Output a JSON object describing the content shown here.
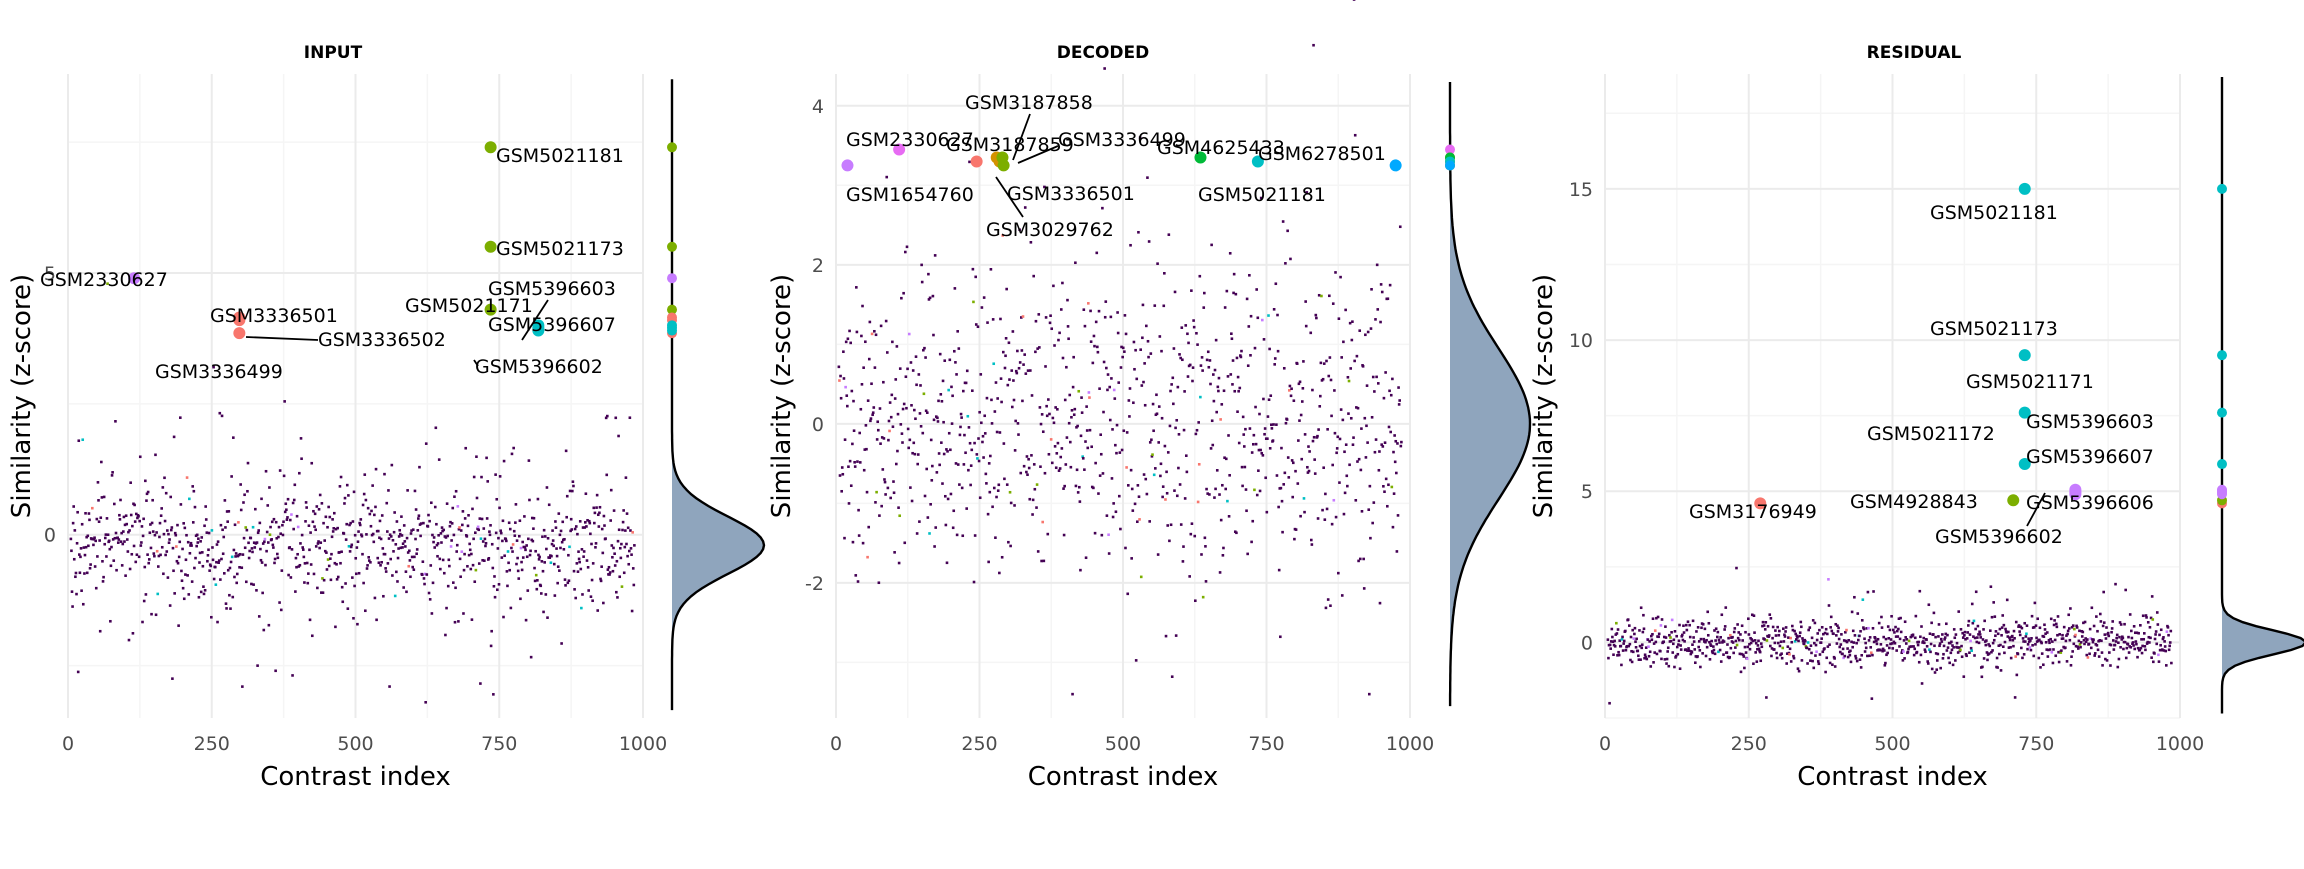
{
  "colors": {
    "background_dots": "#440154",
    "density_fill": "#8fa5bd",
    "grid_major": "#ebebeb",
    "grid_minor": "#f5f5f5",
    "red": "#f8766d",
    "olive": "#7cae00",
    "teal": "#00bfc4",
    "violet": "#c77cff",
    "pink": "#e76bf3",
    "orange": "#d39200",
    "green": "#00ba38",
    "blue": "#00a9ff"
  },
  "chart_data": [
    {
      "type": "scatter",
      "title": "INPUT",
      "xlabel": "Contrast index",
      "ylabel": "Similarity (z-score)",
      "xlim": [
        0,
        1000
      ],
      "ylim": [
        -3.5,
        8.8
      ],
      "x_ticks": [
        0,
        250,
        500,
        750,
        1000
      ],
      "y_ticks": [
        0,
        5
      ],
      "grid": true,
      "background": {
        "n": 1000,
        "mean": -0.2,
        "sd": 0.55,
        "outlier_sd": 1.2,
        "outlier_rate": 0.2
      },
      "highlighted_points": [
        {
          "x": 735,
          "y": 7.4,
          "label": "GSM5021181",
          "color": "olive"
        },
        {
          "x": 735,
          "y": 5.5,
          "label": "GSM5021173",
          "color": "olive"
        },
        {
          "x": 735,
          "y": 4.3,
          "label": "GSM5021171",
          "color": "olive"
        },
        {
          "x": 115,
          "y": 4.9,
          "label": "GSM2330627",
          "color": "violet"
        },
        {
          "x": 298,
          "y": 4.1,
          "label": "GSM3336501",
          "color": "red"
        },
        {
          "x": 298,
          "y": 4.15,
          "label": "GSM3336502",
          "color": "red"
        },
        {
          "x": 298,
          "y": 3.85,
          "label": "GSM3336499",
          "color": "red"
        },
        {
          "x": 818,
          "y": 3.95,
          "label": "GSM5396603",
          "color": "teal"
        },
        {
          "x": 818,
          "y": 4.0,
          "label": "GSM5396607",
          "color": "teal"
        },
        {
          "x": 818,
          "y": 3.9,
          "label": "GSM5396602",
          "color": "teal"
        }
      ],
      "density": {
        "mode": -0.2,
        "sd": 0.55
      }
    },
    {
      "type": "scatter",
      "title": "DECODED",
      "xlabel": "Contrast index",
      "ylabel": "Similarity (z-score)",
      "xlim": [
        0,
        1000
      ],
      "ylim": [
        -3.7,
        4.4
      ],
      "x_ticks": [
        0,
        250,
        500,
        750,
        1000
      ],
      "y_ticks": [
        -2,
        0,
        2,
        4
      ],
      "grid": true,
      "background": {
        "n": 1000,
        "mean": 0.0,
        "sd": 0.95,
        "outlier_sd": 1.1,
        "outlier_rate": 0.05
      },
      "highlighted_points": [
        {
          "x": 20,
          "y": 3.25,
          "label": "GSM1654760",
          "color": "violet"
        },
        {
          "x": 110,
          "y": 3.45,
          "label": "GSM2330627",
          "color": "pink"
        },
        {
          "x": 245,
          "y": 3.3,
          "label": "GSM3029762",
          "color": "red"
        },
        {
          "x": 280,
          "y": 3.35,
          "label": "GSM3187858",
          "color": "orange"
        },
        {
          "x": 285,
          "y": 3.3,
          "label": "GSM3187859",
          "color": "orange"
        },
        {
          "x": 290,
          "y": 3.35,
          "label": "GSM3336499",
          "color": "olive"
        },
        {
          "x": 292,
          "y": 3.25,
          "label": "GSM3336501",
          "color": "olive"
        },
        {
          "x": 635,
          "y": 3.35,
          "label": "GSM4625433",
          "color": "green"
        },
        {
          "x": 735,
          "y": 3.3,
          "label": "GSM5021181",
          "color": "teal"
        },
        {
          "x": 975,
          "y": 3.25,
          "label": "GSM6278501",
          "color": "blue"
        }
      ],
      "density": {
        "mode": 0.0,
        "sd": 0.95
      }
    },
    {
      "type": "scatter",
      "title": "RESIDUAL",
      "xlabel": "Contrast index",
      "ylabel": "Similarity (z-score)",
      "xlim": [
        0,
        1000
      ],
      "ylim": [
        -2.5,
        18.8
      ],
      "x_ticks": [
        0,
        250,
        500,
        750,
        1000
      ],
      "y_ticks": [
        0,
        5,
        10,
        15
      ],
      "grid": true,
      "background": {
        "n": 1000,
        "mean": 0.0,
        "sd": 0.4,
        "outlier_sd": 0.9,
        "outlier_rate": 0.1
      },
      "highlighted_points": [
        {
          "x": 730,
          "y": 15.0,
          "label": "GSM5021181",
          "color": "teal"
        },
        {
          "x": 730,
          "y": 9.5,
          "label": "GSM5021173",
          "color": "teal"
        },
        {
          "x": 730,
          "y": 7.6,
          "label": "GSM5021171",
          "color": "teal"
        },
        {
          "x": 730,
          "y": 5.9,
          "label": "GSM5021172",
          "color": "teal"
        },
        {
          "x": 270,
          "y": 4.6,
          "label": "GSM3176949",
          "color": "red"
        },
        {
          "x": 710,
          "y": 4.7,
          "label": "GSM4928843",
          "color": "olive"
        },
        {
          "x": 818,
          "y": 5.0,
          "label": "GSM5396603",
          "color": "violet"
        },
        {
          "x": 818,
          "y": 5.05,
          "label": "GSM5396607",
          "color": "violet"
        },
        {
          "x": 818,
          "y": 4.95,
          "label": "GSM5396606",
          "color": "violet"
        },
        {
          "x": 818,
          "y": 4.9,
          "label": "GSM5396602",
          "color": "violet"
        }
      ],
      "density": {
        "mode": 0.0,
        "sd": 0.4
      }
    }
  ]
}
